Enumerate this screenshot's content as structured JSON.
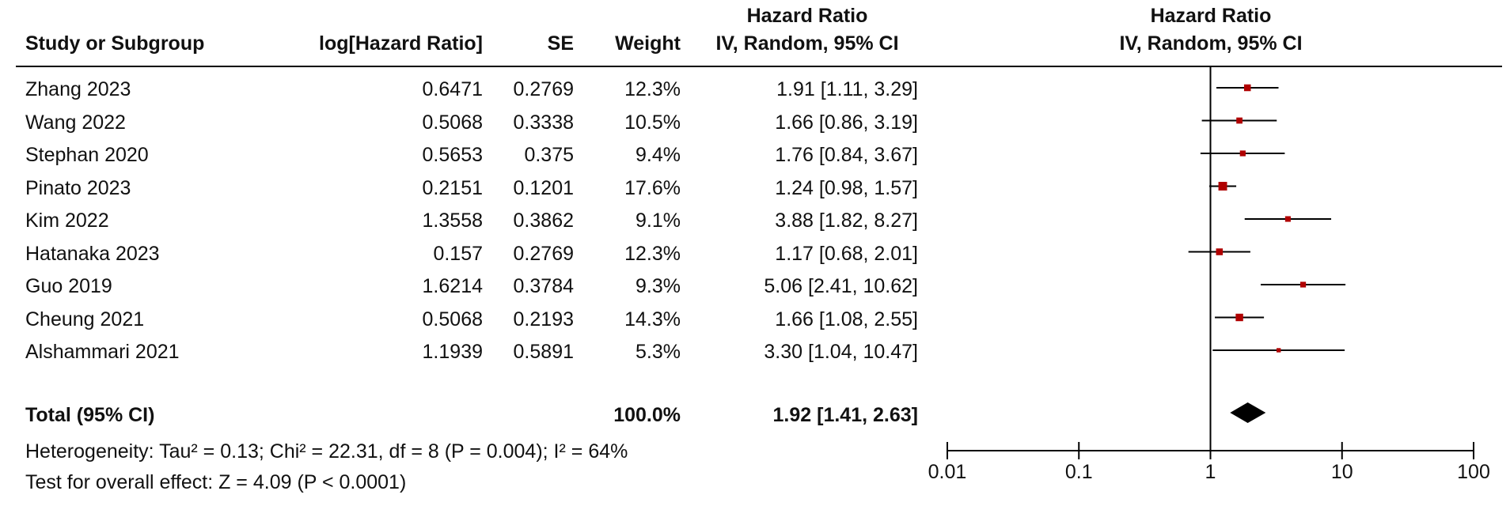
{
  "header": {
    "study_col": "Study or Subgroup",
    "loghr_col": "log[Hazard Ratio]",
    "se_col": "SE",
    "weight_col": "Weight",
    "hr_col_title": "Hazard Ratio",
    "hr_col_sub": "IV, Random, 95% CI",
    "plot_title": "Hazard Ratio",
    "plot_sub": "IV, Random, 95% CI"
  },
  "studies": [
    {
      "name": "Zhang 2023",
      "loghr": "0.6471",
      "se": "0.2769",
      "weight": "12.3%",
      "hr_text": "1.91 [1.11, 3.29]"
    },
    {
      "name": "Wang 2022",
      "loghr": "0.5068",
      "se": "0.3338",
      "weight": "10.5%",
      "hr_text": "1.66 [0.86, 3.19]"
    },
    {
      "name": "Stephan 2020",
      "loghr": "0.5653",
      "se": "0.375",
      "weight": "9.4%",
      "hr_text": "1.76 [0.84, 3.67]"
    },
    {
      "name": "Pinato 2023",
      "loghr": "0.2151",
      "se": "0.1201",
      "weight": "17.6%",
      "hr_text": "1.24 [0.98, 1.57]"
    },
    {
      "name": "Kim 2022",
      "loghr": "1.3558",
      "se": "0.3862",
      "weight": "9.1%",
      "hr_text": "3.88 [1.82, 8.27]"
    },
    {
      "name": "Hatanaka 2023",
      "loghr": "0.157",
      "se": "0.2769",
      "weight": "12.3%",
      "hr_text": "1.17 [0.68, 2.01]"
    },
    {
      "name": "Guo 2019",
      "loghr": "1.6214",
      "se": "0.3784",
      "weight": "9.3%",
      "hr_text": "5.06 [2.41, 10.62]"
    },
    {
      "name": "Cheung 2021",
      "loghr": "0.5068",
      "se": "0.2193",
      "weight": "14.3%",
      "hr_text": "1.66 [1.08, 2.55]"
    },
    {
      "name": "Alshammari 2021",
      "loghr": "1.1939",
      "se": "0.5891",
      "weight": "5.3%",
      "hr_text": "3.30 [1.04, 10.47]"
    }
  ],
  "total": {
    "label": "Total (95% CI)",
    "weight": "100.0%",
    "hr_text": "1.92 [1.41, 2.63]"
  },
  "footer": {
    "heterogeneity": "Heterogeneity: Tau² = 0.13; Chi² = 22.31, df = 8 (P = 0.004); I² = 64%",
    "overall_effect": "Test for overall effect: Z = 4.09 (P < 0.0001)"
  },
  "colors": {
    "marker": "#b00000",
    "line": "#000000",
    "text": "#111111"
  },
  "chart_data": {
    "type": "forest",
    "scale": "log",
    "xlim": [
      0.01,
      100
    ],
    "ticks": [
      {
        "value": 0.01,
        "label": "0.01"
      },
      {
        "value": 0.1,
        "label": "0.1"
      },
      {
        "value": 1,
        "label": "1"
      },
      {
        "value": 10,
        "label": "10"
      },
      {
        "value": 100,
        "label": "100"
      }
    ],
    "reference": 1,
    "points": [
      {
        "name": "Zhang 2023",
        "hr": 1.91,
        "lower": 1.11,
        "upper": 3.29,
        "weight": 12.3
      },
      {
        "name": "Wang 2022",
        "hr": 1.66,
        "lower": 0.86,
        "upper": 3.19,
        "weight": 10.5
      },
      {
        "name": "Stephan 2020",
        "hr": 1.76,
        "lower": 0.84,
        "upper": 3.67,
        "weight": 9.4
      },
      {
        "name": "Pinato 2023",
        "hr": 1.24,
        "lower": 0.98,
        "upper": 1.57,
        "weight": 17.6
      },
      {
        "name": "Kim 2022",
        "hr": 3.88,
        "lower": 1.82,
        "upper": 8.27,
        "weight": 9.1
      },
      {
        "name": "Hatanaka 2023",
        "hr": 1.17,
        "lower": 0.68,
        "upper": 2.01,
        "weight": 12.3
      },
      {
        "name": "Guo 2019",
        "hr": 5.06,
        "lower": 2.41,
        "upper": 10.62,
        "weight": 9.3
      },
      {
        "name": "Cheung 2021",
        "hr": 1.66,
        "lower": 1.08,
        "upper": 2.55,
        "weight": 14.3
      },
      {
        "name": "Alshammari 2021",
        "hr": 3.3,
        "lower": 1.04,
        "upper": 10.47,
        "weight": 5.3
      }
    ],
    "pooled": {
      "hr": 1.92,
      "lower": 1.41,
      "upper": 2.63
    }
  }
}
